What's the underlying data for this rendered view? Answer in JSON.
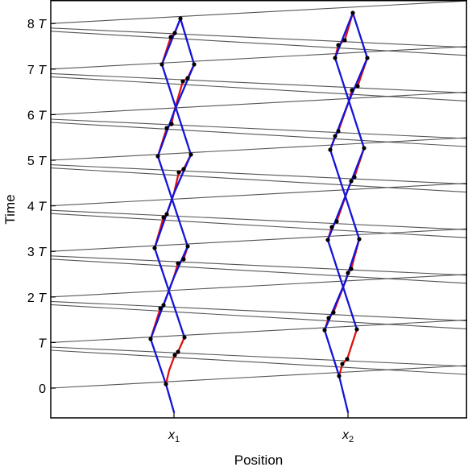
{
  "axes": {
    "xlabel": "Position",
    "ylabel": "Time",
    "xticks": [
      {
        "base": "x",
        "sub": "1"
      },
      {
        "base": "x",
        "sub": "2"
      }
    ],
    "yticks": [
      {
        "value": 0,
        "label": "0"
      },
      {
        "value": 1,
        "label": "T"
      },
      {
        "value": 2,
        "label": "2 T"
      },
      {
        "value": 3,
        "label": "3 T"
      },
      {
        "value": 4,
        "label": "4 T"
      },
      {
        "value": 5,
        "label": "5 T"
      },
      {
        "value": 6,
        "label": "6 T"
      },
      {
        "value": 7,
        "label": "7 T"
      },
      {
        "value": 8,
        "label": "8 T"
      }
    ]
  },
  "colors": {
    "frame": "#000000",
    "light_line": "#555555",
    "red_path": "#e01010",
    "blue_path": "#1414d8",
    "point": "#000000"
  }
}
